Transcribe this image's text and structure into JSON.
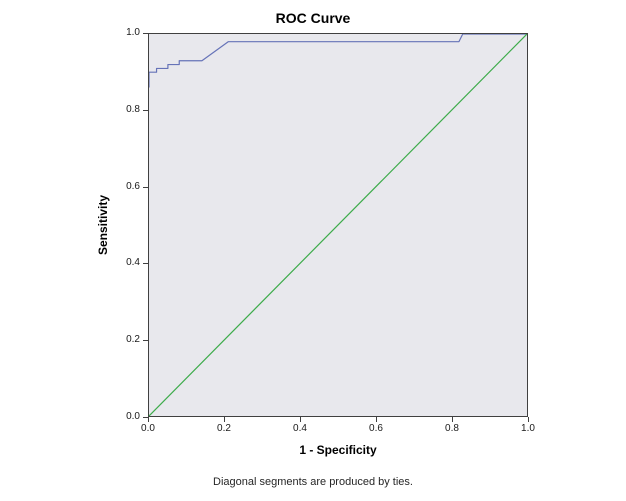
{
  "chart_data": {
    "type": "line",
    "title": "ROC Curve",
    "xlabel": "1 - Specificity",
    "ylabel": "Sensitivity",
    "footnote": "Diagonal segments are produced by ties.",
    "xlim": [
      0,
      1
    ],
    "ylim": [
      0,
      1
    ],
    "grid": false,
    "legend": "none",
    "plot_bg": "#e8e8ed",
    "xticks": {
      "values": [
        0,
        0.2,
        0.4,
        0.6,
        0.8,
        1.0
      ],
      "labels": [
        "0.0",
        "0.2",
        "0.4",
        "0.6",
        "0.8",
        "1.0"
      ]
    },
    "yticks": {
      "values": [
        0,
        0.2,
        0.4,
        0.6,
        0.8,
        1.0
      ],
      "labels": [
        "0.0",
        "0.2",
        "0.4",
        "0.6",
        "0.8",
        "1.0"
      ]
    },
    "series": [
      {
        "name": "ROC curve",
        "color": "#6673b8",
        "points": [
          [
            0.0,
            0.86
          ],
          [
            0.0,
            0.9
          ],
          [
            0.02,
            0.9
          ],
          [
            0.02,
            0.91
          ],
          [
            0.05,
            0.91
          ],
          [
            0.05,
            0.92
          ],
          [
            0.08,
            0.92
          ],
          [
            0.08,
            0.93
          ],
          [
            0.13,
            0.93
          ],
          [
            0.14,
            0.93
          ],
          [
            0.21,
            0.98
          ],
          [
            0.82,
            0.98
          ],
          [
            0.83,
            1.0
          ],
          [
            1.0,
            1.0
          ]
        ]
      },
      {
        "name": "Reference diagonal",
        "color": "#3cab4a",
        "points": [
          [
            0,
            0
          ],
          [
            1,
            1
          ]
        ]
      }
    ]
  }
}
